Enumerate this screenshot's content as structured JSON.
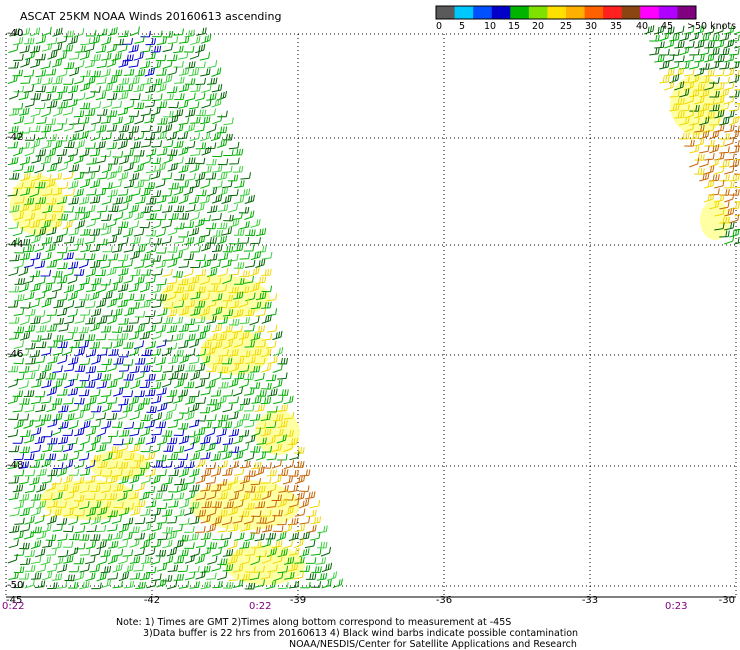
{
  "title": "ASCAT 25KM NOAA Winds 20160613 ascending",
  "legend": {
    "colors": [
      "#5a5a5a",
      "#00c8ff",
      "#0050ff",
      "#0000c8",
      "#00b400",
      "#80e000",
      "#ffe000",
      "#ffb000",
      "#ff6000",
      "#ff2020",
      "#8b4513",
      "#ff00ff",
      "#b000ff",
      "#800080"
    ],
    "labels": [
      "0",
      "5",
      "10",
      "15",
      "20",
      "25",
      "30",
      "35",
      "40",
      "45",
      ">50 knots"
    ]
  },
  "lat_labels": [
    "-40",
    "-42",
    "-44",
    "-46",
    "-48",
    "-50"
  ],
  "lon_labels": [
    "-45",
    "-42",
    "-39",
    "-36",
    "-33",
    "-30"
  ],
  "time_labels": [
    "0:22",
    "0:22",
    "0:23"
  ],
  "notes": {
    "line1": "Note: 1) Times are GMT 2)Times along bottom correspond to measurement at -45S",
    "line2": "3)Data buffer is 22 hrs from 20160613 4) Black wind barbs indicate possible contamination",
    "credit": "NOAA/NESDIS/Center for Satellite Applications and Research"
  },
  "barb_colors": {
    "green": "#00b000",
    "dark_green": "#006400",
    "light_green": "#40d040",
    "blue": "#0000cc",
    "yellow": "#f0d800",
    "orange": "#c86400",
    "yellow_fill": "#ffff9a"
  }
}
